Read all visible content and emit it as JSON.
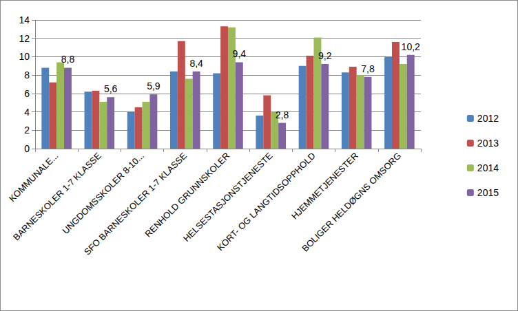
{
  "chart_data": {
    "type": "bar",
    "categories": [
      "KOMMUNALE...",
      "BARNESKOLER 1-7 KLASSE",
      "UNGDOMSSKOLER 8-10...",
      "SFO BARNESKOLER 1-7 KLASSE",
      "RENHOLD GRUNNSKOLER",
      "HELSESTASJONSTJENESTE",
      "KORT- OG LANGTIDSOPPHOLD",
      "HJEMMETJENESTER",
      "BOLIGER HELDØGNS OMSORG"
    ],
    "series": [
      {
        "name": "2012",
        "color": "#4F81BD",
        "values": [
          8.8,
          6.2,
          4.0,
          8.4,
          8.2,
          3.6,
          9.0,
          8.3,
          10.0
        ]
      },
      {
        "name": "2013",
        "color": "#C0504D",
        "values": [
          7.2,
          6.3,
          4.5,
          11.7,
          13.3,
          5.8,
          10.1,
          8.9,
          11.6
        ]
      },
      {
        "name": "2014",
        "color": "#9BBB59",
        "values": [
          9.4,
          5.1,
          5.1,
          7.6,
          13.2,
          4.0,
          12.1,
          8.0,
          9.2
        ]
      },
      {
        "name": "2015",
        "color": "#8064A2",
        "values": [
          8.8,
          5.6,
          5.9,
          8.4,
          9.4,
          2.8,
          9.2,
          7.8,
          10.2
        ],
        "data_labels": true,
        "value_labels": [
          "8,8",
          "5,6",
          "5,9",
          "8,4",
          "9,4",
          "2,8",
          "9,2",
          "7,8",
          "10,2"
        ]
      }
    ],
    "ylim": [
      0,
      14
    ],
    "yticks": [
      0,
      2,
      4,
      6,
      8,
      10,
      12,
      14
    ],
    "grid": true,
    "legend": "right"
  }
}
